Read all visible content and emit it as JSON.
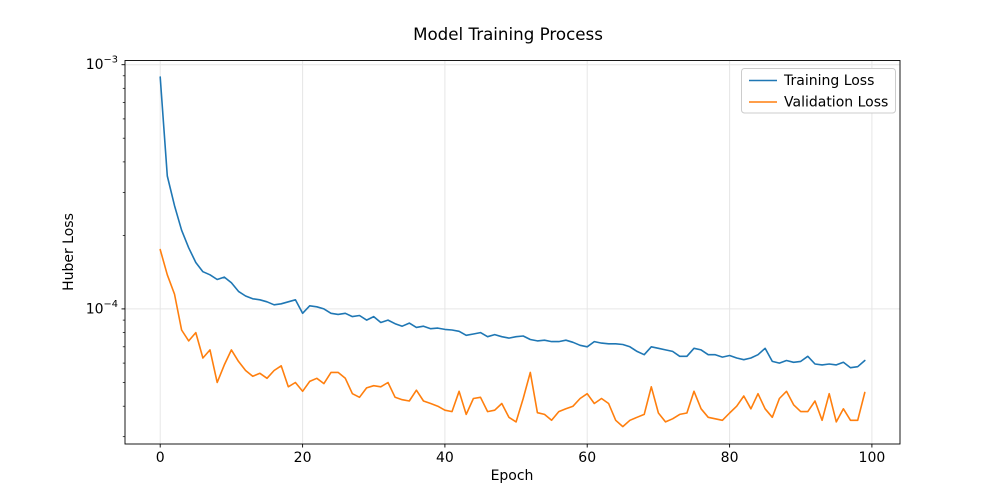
{
  "chart_data": {
    "type": "line",
    "title": "Model Training Process",
    "xlabel": "Epoch",
    "ylabel": "Huber Loss",
    "yscale": "log",
    "grid": true,
    "legend_position": "upper right",
    "xlim": [
      -4.95,
      103.95
    ],
    "ylim": [
      2.8e-05,
      0.00104
    ],
    "xticks": [
      0,
      20,
      40,
      60,
      80,
      100
    ],
    "yticks": [
      {
        "value": 0.001,
        "base": "10",
        "exp": "−3"
      },
      {
        "value": 0.0001,
        "base": "10",
        "exp": "−4"
      }
    ],
    "colors": {
      "training": "#1f77b4",
      "validation": "#ff7f0e",
      "grid": "#e6e6e6",
      "frame": "#000000",
      "legend_border": "#cccccc"
    },
    "x": [
      0,
      1,
      2,
      3,
      4,
      5,
      6,
      7,
      8,
      9,
      10,
      11,
      12,
      13,
      14,
      15,
      16,
      17,
      18,
      19,
      20,
      21,
      22,
      23,
      24,
      25,
      26,
      27,
      28,
      29,
      30,
      31,
      32,
      33,
      34,
      35,
      36,
      37,
      38,
      39,
      40,
      41,
      42,
      43,
      44,
      45,
      46,
      47,
      48,
      49,
      50,
      51,
      52,
      53,
      54,
      55,
      56,
      57,
      58,
      59,
      60,
      61,
      62,
      63,
      64,
      65,
      66,
      67,
      68,
      69,
      70,
      71,
      72,
      73,
      74,
      75,
      76,
      77,
      78,
      79,
      80,
      81,
      82,
      83,
      84,
      85,
      86,
      87,
      88,
      89,
      90,
      91,
      92,
      93,
      94,
      95,
      96,
      97,
      98,
      99
    ],
    "series": [
      {
        "name": "Training Loss",
        "color": "#1f77b4",
        "values": [
          0.00089,
          0.00035,
          0.000265,
          0.00021,
          0.000178,
          0.000155,
          0.000142,
          0.000138,
          0.000132,
          0.000135,
          0.000128,
          0.000118,
          0.000113,
          0.00011,
          0.000109,
          0.000107,
          0.000104,
          0.000105,
          0.000107,
          0.000109,
          9.6e-05,
          0.000103,
          0.000102,
          0.0001,
          9.6e-05,
          9.5e-05,
          9.6e-05,
          9.3e-05,
          9.4e-05,
          9e-05,
          9.3e-05,
          8.8e-05,
          9e-05,
          8.7e-05,
          8.5e-05,
          8.75e-05,
          8.4e-05,
          8.5e-05,
          8.3e-05,
          8.35e-05,
          8.25e-05,
          8.2e-05,
          8.1e-05,
          7.8e-05,
          7.9e-05,
          8e-05,
          7.7e-05,
          7.85e-05,
          7.7e-05,
          7.6e-05,
          7.7e-05,
          7.75e-05,
          7.5e-05,
          7.4e-05,
          7.45e-05,
          7.35e-05,
          7.35e-05,
          7.45e-05,
          7.3e-05,
          7.1e-05,
          7e-05,
          7.35e-05,
          7.25e-05,
          7.2e-05,
          7.2e-05,
          7.15e-05,
          7e-05,
          6.7e-05,
          6.5e-05,
          7e-05,
          6.9e-05,
          6.8e-05,
          6.7e-05,
          6.4e-05,
          6.4e-05,
          6.9e-05,
          6.8e-05,
          6.5e-05,
          6.5e-05,
          6.35e-05,
          6.45e-05,
          6.3e-05,
          6.2e-05,
          6.3e-05,
          6.5e-05,
          6.9e-05,
          6.1e-05,
          6e-05,
          6.15e-05,
          6.05e-05,
          6.1e-05,
          6.4e-05,
          5.95e-05,
          5.9e-05,
          5.95e-05,
          5.9e-05,
          6.05e-05,
          5.75e-05,
          5.8e-05,
          6.15e-05
        ]
      },
      {
        "name": "Validation Loss",
        "color": "#ff7f0e",
        "values": [
          0.000175,
          0.000138,
          0.000115,
          8.2e-05,
          7.4e-05,
          8e-05,
          6.3e-05,
          6.8e-05,
          5e-05,
          5.9e-05,
          6.8e-05,
          6.1e-05,
          5.6e-05,
          5.3e-05,
          5.45e-05,
          5.2e-05,
          5.6e-05,
          5.85e-05,
          4.8e-05,
          5e-05,
          4.6e-05,
          5.05e-05,
          5.2e-05,
          4.95e-05,
          5.5e-05,
          5.5e-05,
          5.2e-05,
          4.5e-05,
          4.35e-05,
          4.75e-05,
          4.85e-05,
          4.8e-05,
          5e-05,
          4.35e-05,
          4.25e-05,
          4.2e-05,
          4.65e-05,
          4.2e-05,
          4.1e-05,
          4e-05,
          3.85e-05,
          3.8e-05,
          4.6e-05,
          3.7e-05,
          4.3e-05,
          4.35e-05,
          3.8e-05,
          3.85e-05,
          4.1e-05,
          3.6e-05,
          3.45e-05,
          4.3e-05,
          5.5e-05,
          3.76e-05,
          3.7e-05,
          3.5e-05,
          3.8e-05,
          3.9e-05,
          4e-05,
          4.3e-05,
          4.5e-05,
          4.1e-05,
          4.3e-05,
          4.1e-05,
          3.5e-05,
          3.3e-05,
          3.5e-05,
          3.6e-05,
          3.7e-05,
          4.8e-05,
          3.75e-05,
          3.45e-05,
          3.55e-05,
          3.7e-05,
          3.75e-05,
          4.6e-05,
          3.9e-05,
          3.6e-05,
          3.55e-05,
          3.5e-05,
          3.75e-05,
          4e-05,
          4.4e-05,
          3.9e-05,
          4.5e-05,
          3.9e-05,
          3.6e-05,
          4.3e-05,
          4.6e-05,
          4.05e-05,
          3.8e-05,
          3.8e-05,
          4.2e-05,
          3.5e-05,
          4.5e-05,
          3.45e-05,
          3.9e-05,
          3.5e-05,
          3.5e-05,
          4.55e-05
        ]
      }
    ]
  }
}
